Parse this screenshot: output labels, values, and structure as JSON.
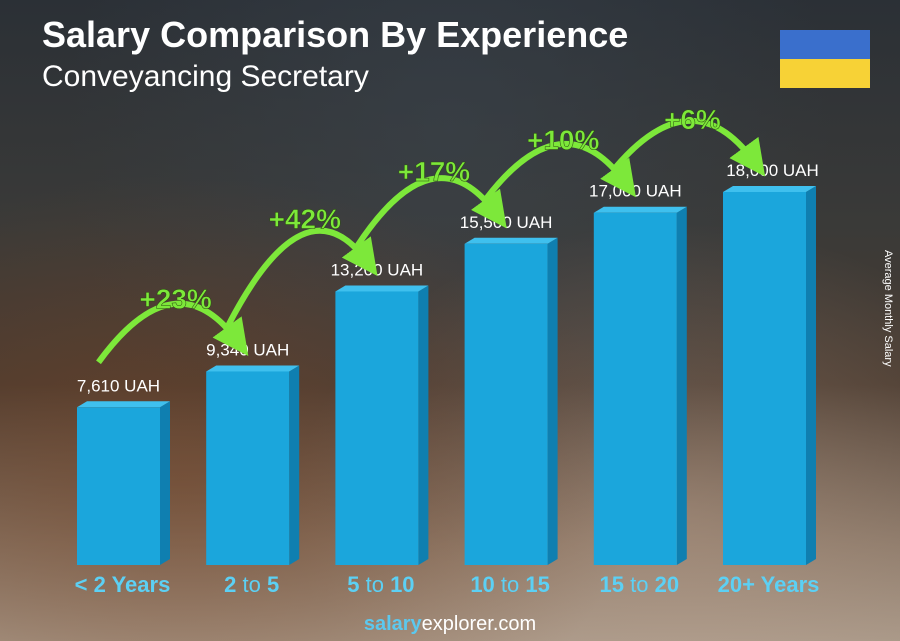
{
  "chart_data": {
    "type": "bar",
    "title": "Salary Comparison By Experience",
    "subtitle": "Conveyancing Secretary",
    "ylabel": "Average Monthly Salary",
    "categories": [
      "< 2 Years",
      "2 to 5",
      "5 to 10",
      "10 to 15",
      "15 to 20",
      "20+ Years"
    ],
    "values": [
      7610,
      9340,
      13200,
      15500,
      17000,
      18000
    ],
    "value_labels": [
      "7,610 UAH",
      "9,340 UAH",
      "13,200 UAH",
      "15,500 UAH",
      "17,000 UAH",
      "18,000 UAH"
    ],
    "increases": [
      "+23%",
      "+42%",
      "+17%",
      "+10%",
      "+6%"
    ],
    "currency": "UAH",
    "colors": {
      "bar": "#1ba6dc",
      "bar_side": "#0f7fb0",
      "bar_top": "#3fc0ee",
      "increase": "#7de83a",
      "category": "#5cd0f4"
    }
  },
  "flag": {
    "country": "Ukraine",
    "colors": [
      "#3a6fcc",
      "#f7d236"
    ]
  },
  "footer": {
    "brand_bold": "salary",
    "brand_rest": "explorer.com"
  }
}
